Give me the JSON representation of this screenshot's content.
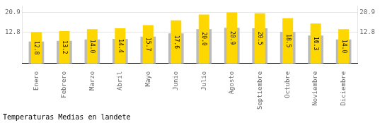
{
  "chart_data": {
    "type": "bar",
    "title": "Temperaturas Medias en landete",
    "categories": [
      "Enero",
      "Febrero",
      "Marzo",
      "Abril",
      "Mayo",
      "Junio",
      "Julio",
      "Agosto",
      "Septiembre",
      "Octubre",
      "Noviembre",
      "Diciembre"
    ],
    "series": [
      {
        "color": "#BBBBBB",
        "values": [
          8.96,
          9.24,
          9.8,
          10.08,
          10.99,
          12.32,
          14,
          14.63,
          14.35,
          12.95,
          11.41,
          9.8
        ]
      },
      {
        "color": "#FFD700",
        "values": [
          12.8,
          13.2,
          14.0,
          14.4,
          15.7,
          17.6,
          20.0,
          20.9,
          20.5,
          18.5,
          16.3,
          14.0
        ],
        "value_labels": [
          "12.8",
          "13.2",
          "14.0",
          "14.4",
          "15.7",
          "17.6",
          "20.0",
          "20.9",
          "20.5",
          "18.5",
          "16.3",
          "14.0"
        ]
      }
    ],
    "ylim": [
      0,
      23.5
    ],
    "yticks": [
      12.8,
      20.9
    ],
    "y2lim": [
      0,
      23.5
    ],
    "y2ticks": [
      12.8,
      20.9
    ],
    "grid": true,
    "data_labels": true
  }
}
